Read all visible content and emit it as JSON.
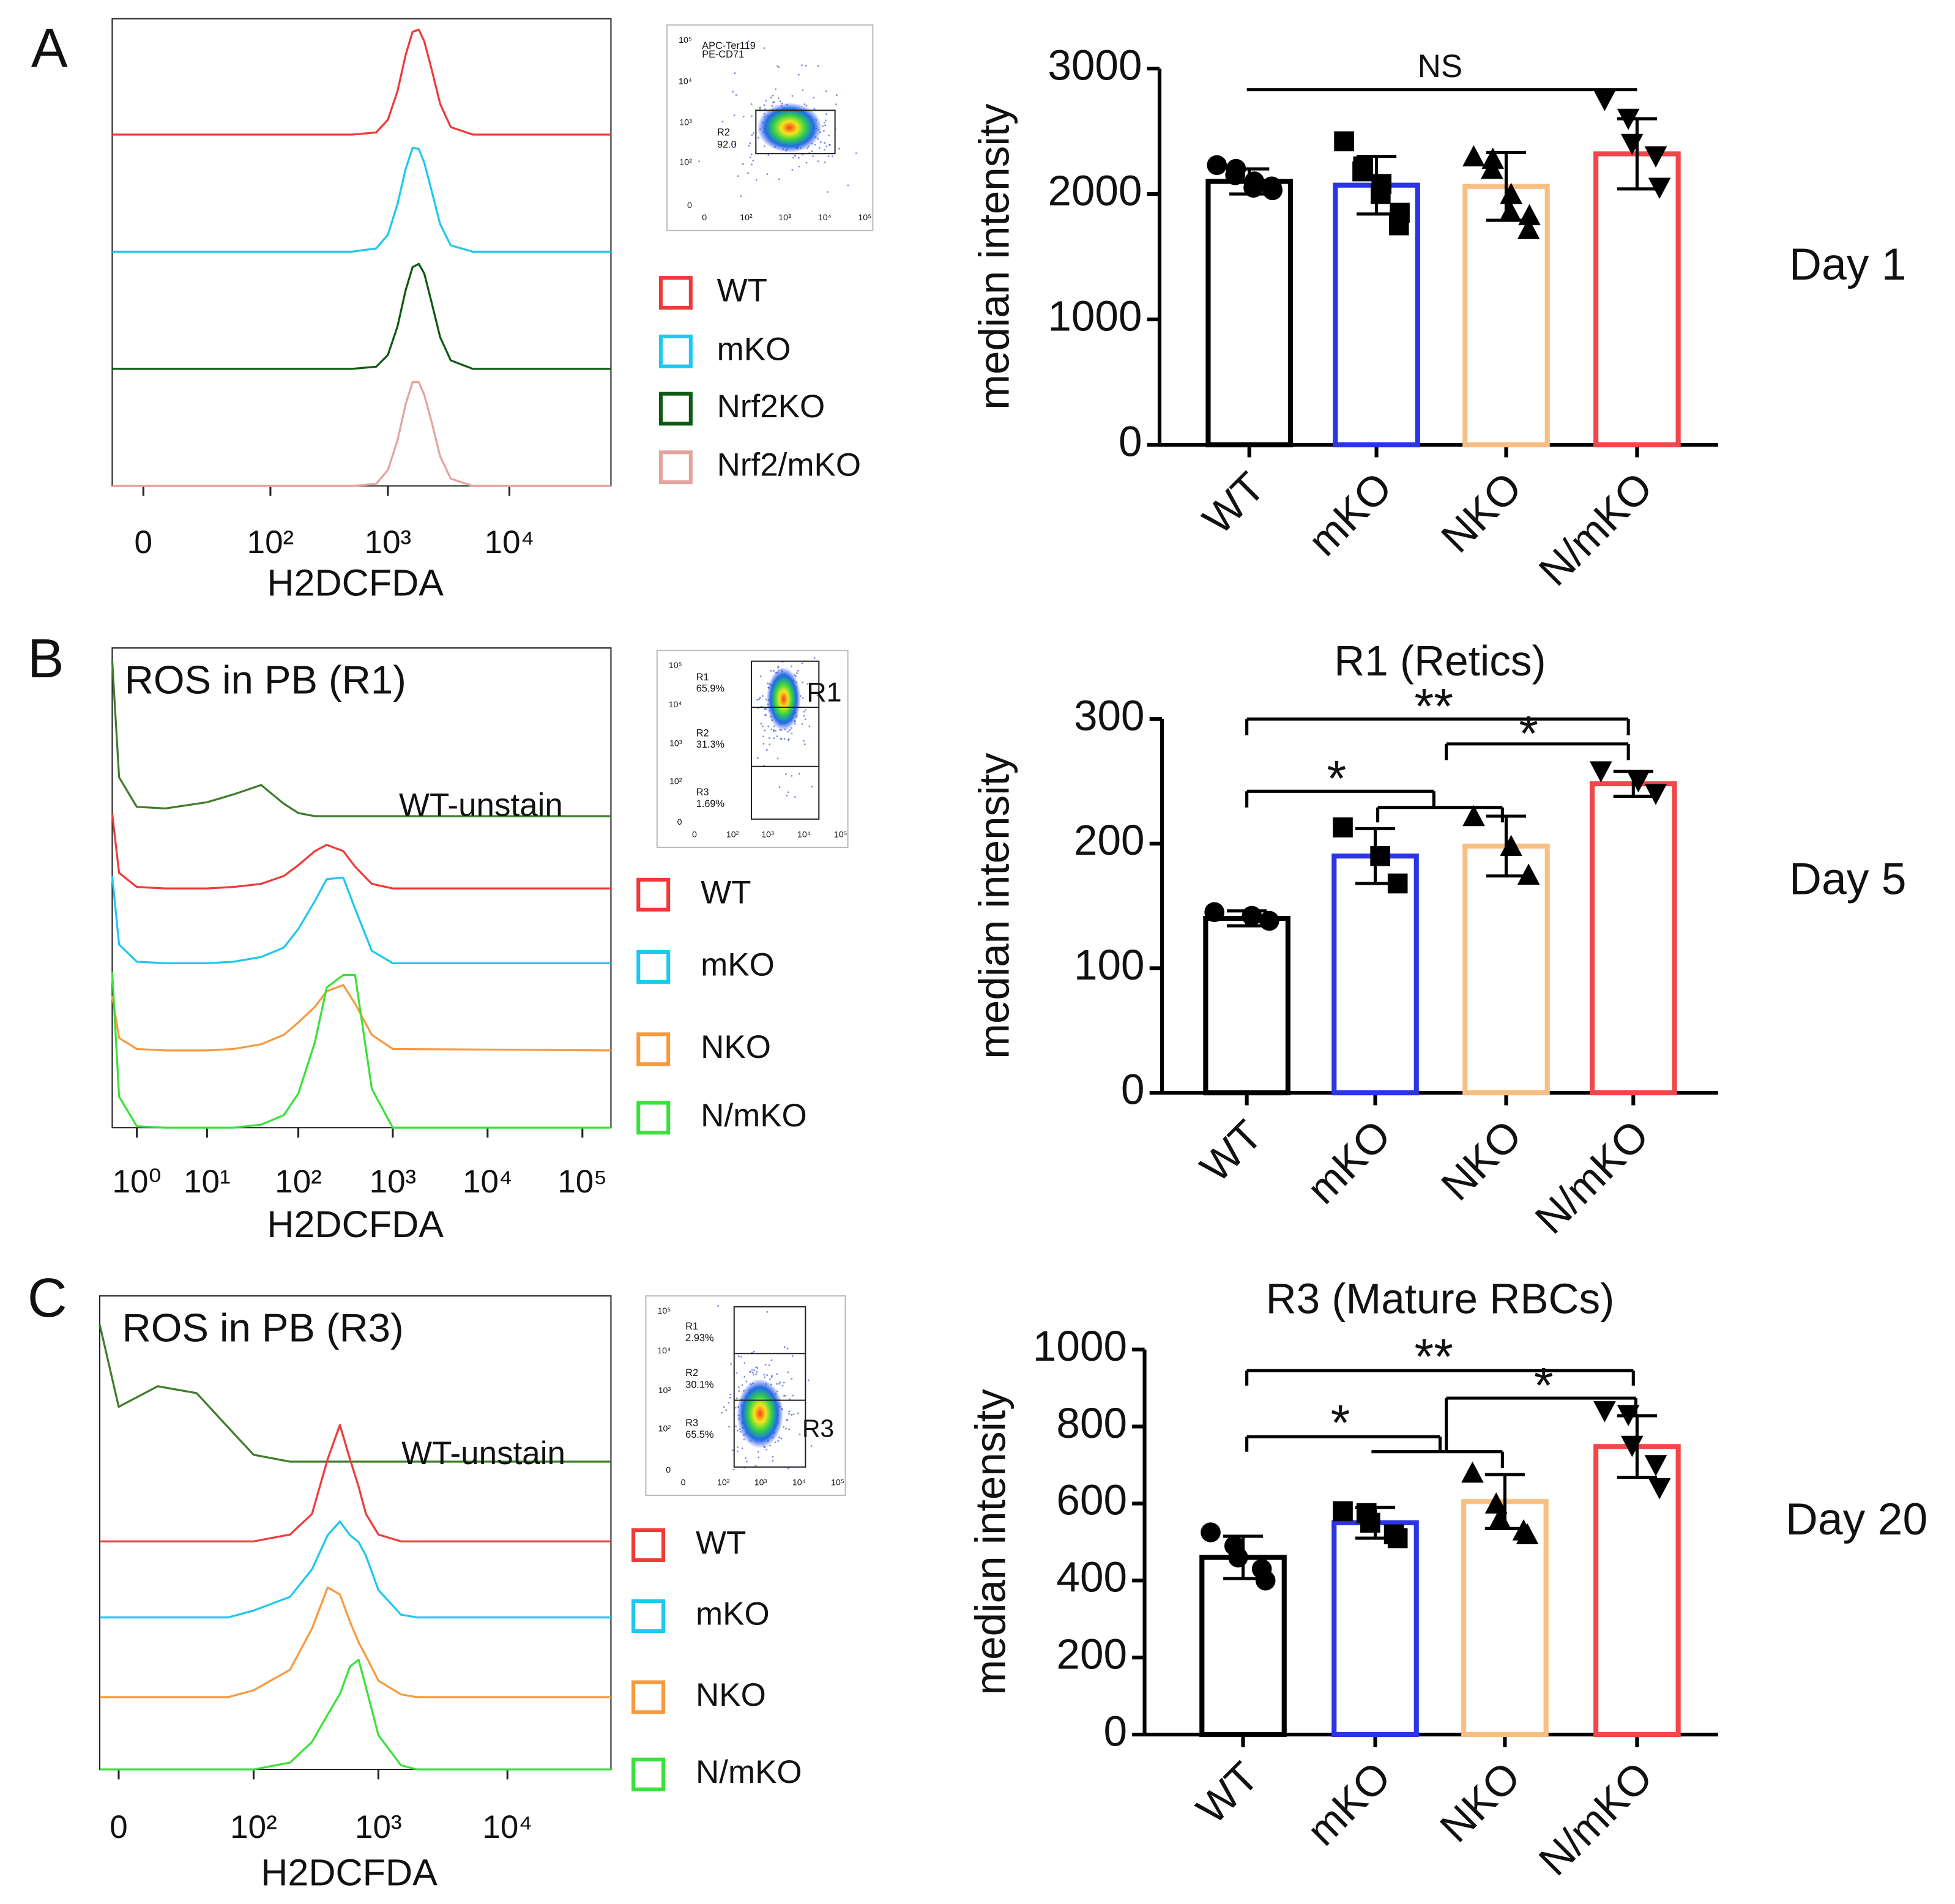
{
  "panel_labels": [
    "A",
    "B",
    "C"
  ],
  "chart_data": [
    {
      "type": "histogram-overlay",
      "xlabel": "H2DCFDA",
      "xscale": "symlog",
      "linthresh": 10,
      "xlim": [
        -8,
        68000
      ],
      "xticks": [
        0,
        {
          "value": 100,
          "label": "10²"
        },
        {
          "value": 1000,
          "label": "10³"
        },
        {
          "value": 10000,
          "label": "10⁴"
        }
      ],
      "x": [
        -8,
        500,
        800,
        1000,
        1200,
        1400,
        1600,
        1800,
        2000,
        2300,
        2700,
        3300,
        5000,
        68000
      ],
      "series": [
        {
          "name": "WT",
          "color": "#f03a3a",
          "values": [
            0,
            0,
            2,
            14,
            41,
            75,
            97,
            99,
            88,
            61,
            29,
            7,
            0,
            0
          ]
        },
        {
          "name": "mKO",
          "color": "#1ec8ef",
          "values": [
            0,
            0,
            3,
            16,
            45,
            78,
            98,
            97,
            84,
            57,
            26,
            6,
            0,
            0
          ]
        },
        {
          "name": "Nrf2KO",
          "color": "#0d5a12",
          "values": [
            0,
            0,
            2,
            13,
            40,
            74,
            96,
            99,
            90,
            62,
            30,
            8,
            0,
            0
          ]
        },
        {
          "name": "Nrf2/mKO",
          "color": "#e5a3a0",
          "values": [
            0,
            0,
            2,
            15,
            43,
            77,
            98,
            98,
            86,
            60,
            28,
            7,
            0,
            0
          ]
        }
      ]
    },
    {
      "type": "bar",
      "ylabel": "median intensity",
      "side_label": "Day 1",
      "categories": [
        "WT",
        "mKO",
        "NKO",
        "N/mKO"
      ],
      "values": [
        2100,
        2070,
        2060,
        2320
      ],
      "errors": [
        100,
        230,
        270,
        280
      ],
      "points": [
        [
          2230,
          2200,
          2150,
          2100,
          2050,
          2030,
          2060
        ],
        [
          2420,
          2220,
          2180,
          2080,
          2000,
          1850,
          1750
        ],
        [
          2300,
          2280,
          2200,
          2000,
          1860,
          1830,
          1720
        ],
        [
          2750,
          2600,
          2400,
          2300,
          2050
        ]
      ],
      "colors": [
        "#000000",
        "#2b35e6",
        "#f8bf82",
        "#f0474a"
      ],
      "markers": [
        "circle",
        "square",
        "triangle",
        "triangle-down"
      ],
      "ylim": [
        0,
        3000
      ],
      "yticks": [
        0,
        1000,
        2000,
        3000
      ],
      "annotations": [
        "NS"
      ]
    },
    {
      "type": "histogram-overlay",
      "title": "ROS in PB (R1)",
      "xlabel": "H2DCFDA",
      "xscale": "symlog",
      "linthresh": 1,
      "xlim": [
        0.1,
        200000
      ],
      "xticks": [
        {
          "value": 1,
          "label": "10⁰"
        },
        {
          "value": 10,
          "label": "10¹"
        },
        {
          "value": 100,
          "label": "10²"
        },
        {
          "value": 1000,
          "label": "10³"
        },
        {
          "value": 10000,
          "label": "10⁴"
        },
        {
          "value": 100000,
          "label": "10⁵"
        }
      ],
      "x": [
        0.1,
        0.3,
        1,
        3,
        10,
        20,
        40,
        70,
        100,
        150,
        200,
        300,
        400,
        600,
        1000,
        200000
      ],
      "series": [
        {
          "name": "WT-unstain",
          "color": "#3f7d2a",
          "legend": false,
          "values": [
            100,
            25,
            6,
            5,
            9,
            14,
            20,
            8,
            2,
            0,
            0,
            0,
            0,
            0,
            0,
            0
          ]
        },
        {
          "name": "WT",
          "color": "#f03a3a",
          "values": [
            48,
            10,
            1,
            0,
            0,
            1,
            3,
            8,
            15,
            24,
            28,
            24,
            14,
            3,
            0,
            0
          ]
        },
        {
          "name": "mKO",
          "color": "#1ec8ef",
          "values": [
            56,
            12,
            1,
            0,
            0,
            1,
            4,
            10,
            22,
            40,
            54,
            55,
            35,
            8,
            0,
            0
          ]
        },
        {
          "name": "NKO",
          "color": "#f79a3e",
          "values": [
            35,
            8,
            1,
            0,
            0,
            1,
            4,
            10,
            18,
            28,
            38,
            42,
            30,
            10,
            1,
            0
          ]
        },
        {
          "name": "N/mKO",
          "color": "#3be13b",
          "values": [
            100,
            20,
            1,
            0,
            0,
            0,
            2,
            8,
            22,
            55,
            90,
            98,
            98,
            25,
            0,
            0
          ]
        }
      ]
    },
    {
      "type": "bar",
      "title": "R1 (Retics)",
      "ylabel": "median intensity",
      "side_label": "Day 5",
      "categories": [
        "WT",
        "mKO",
        "NKO",
        "N/mKO"
      ],
      "values": [
        140,
        190,
        198,
        248
      ],
      "errors": [
        6,
        22,
        24,
        10
      ],
      "points": [
        [
          145,
          142,
          138
        ],
        [
          213,
          190,
          168
        ],
        [
          222,
          198,
          175
        ],
        [
          258,
          250,
          240
        ]
      ],
      "colors": [
        "#000000",
        "#2b35e6",
        "#f8bf82",
        "#f0474a"
      ],
      "markers": [
        "circle",
        "square",
        "triangle",
        "triangle-down"
      ],
      "ylim": [
        0,
        300
      ],
      "yticks": [
        0,
        100,
        200,
        300
      ],
      "annotations": [
        "**",
        "*",
        "*"
      ]
    },
    {
      "type": "histogram-overlay",
      "title": "ROS in PB (R3)",
      "xlabel": "H2DCFDA",
      "xscale": "symlog",
      "linthresh": 10,
      "xlim": [
        -4,
        63000
      ],
      "xticks": [
        0,
        {
          "value": 100,
          "label": "10²"
        },
        {
          "value": 1000,
          "label": "10³"
        },
        {
          "value": 10000,
          "label": "10⁴"
        }
      ],
      "x": [
        -4,
        0,
        10,
        30,
        60,
        100,
        200,
        300,
        400,
        500,
        600,
        700,
        800,
        1000,
        1500,
        2000,
        63000
      ],
      "series": [
        {
          "name": "WT-unstain",
          "color": "#3f7d2a",
          "legend": false,
          "values": [
            100,
            40,
            55,
            50,
            25,
            5,
            0,
            0,
            0,
            0,
            0,
            0,
            0,
            0,
            0,
            0,
            0
          ]
        },
        {
          "name": "WT",
          "color": "#f03a3a",
          "values": [
            0,
            0,
            0,
            0,
            0,
            0,
            5,
            20,
            60,
            85,
            60,
            40,
            20,
            5,
            0,
            0,
            0
          ]
        },
        {
          "name": "mKO",
          "color": "#1ec8ef",
          "values": [
            0,
            0,
            0,
            0,
            0,
            5,
            15,
            35,
            60,
            70,
            60,
            55,
            45,
            20,
            2,
            0,
            0
          ]
        },
        {
          "name": "NKO",
          "color": "#f79a3e",
          "values": [
            0,
            0,
            0,
            0,
            0,
            5,
            20,
            50,
            80,
            75,
            55,
            40,
            30,
            12,
            2,
            0,
            0
          ]
        },
        {
          "name": "N/mKO",
          "color": "#3be13b",
          "values": [
            0,
            0,
            0,
            0,
            0,
            0,
            5,
            20,
            40,
            55,
            75,
            80,
            60,
            25,
            3,
            0,
            0
          ]
        }
      ]
    },
    {
      "type": "bar",
      "title": "R3 (Mature RBCs)",
      "ylabel": "median intensity",
      "side_label": "Day 20",
      "categories": [
        "WT",
        "mKO",
        "NKO",
        "N/mKO"
      ],
      "values": [
        460,
        550,
        605,
        748
      ],
      "errors": [
        55,
        40,
        70,
        80
      ],
      "points": [
        [
          525,
          490,
          460,
          430,
          400
        ],
        [
          580,
          575,
          550,
          520,
          510
        ],
        [
          680,
          600,
          560,
          530,
          520
        ],
        [
          840,
          830,
          750,
          700,
          640
        ]
      ],
      "colors": [
        "#000000",
        "#2b35e6",
        "#f8bf82",
        "#f0474a"
      ],
      "markers": [
        "circle",
        "square",
        "triangle",
        "triangle-down"
      ],
      "ylim": [
        0,
        1000
      ],
      "yticks": [
        0,
        200,
        400,
        600,
        800,
        1000
      ],
      "annotations": [
        "**",
        "*",
        "*"
      ]
    }
  ],
  "insets": [
    {
      "labels": [
        "APC-Ter119",
        "PE-CD71",
        "R2",
        "92.0"
      ],
      "yticks": [
        0,
        {
          "value": 100,
          "label": "10²"
        },
        {
          "value": 1000,
          "label": "10³"
        },
        {
          "value": 10000,
          "label": "10⁴"
        },
        {
          "value": 100000,
          "label": "10⁵"
        }
      ],
      "xticks": [
        0,
        {
          "value": 100,
          "label": "10²"
        },
        {
          "value": 1000,
          "label": "10³"
        },
        {
          "value": 10000,
          "label": "10⁴"
        },
        {
          "value": 100000,
          "label": "10⁵"
        }
      ]
    },
    {
      "labels": [
        "R1",
        "65.9%",
        "R2",
        "31.3%",
        "R3",
        "1.69%",
        "R1"
      ],
      "yticks": [
        0,
        {
          "value": 100,
          "label": "10²"
        },
        {
          "value": 1000,
          "label": "10³"
        },
        {
          "value": 10000,
          "label": "10⁴"
        },
        {
          "value": 100000,
          "label": "10⁵"
        }
      ],
      "xticks": [
        0,
        {
          "value": 100,
          "label": "10²"
        },
        {
          "value": 1000,
          "label": "10³"
        },
        {
          "value": 10000,
          "label": "10⁴"
        },
        {
          "value": 100000,
          "label": "10⁵"
        }
      ]
    },
    {
      "labels": [
        "R1",
        "2.93%",
        "R2",
        "30.1%",
        "R3",
        "65.5%",
        "R3"
      ],
      "yticks": [
        0,
        {
          "value": 100,
          "label": "10²"
        },
        {
          "value": 1000,
          "label": "10³"
        },
        {
          "value": 10000,
          "label": "10⁴"
        },
        {
          "value": 100000,
          "label": "10⁵"
        }
      ],
      "xticks": [
        0,
        {
          "value": 100,
          "label": "10²"
        },
        {
          "value": 1000,
          "label": "10³"
        },
        {
          "value": 10000,
          "label": "10⁴"
        },
        {
          "value": 100000,
          "label": "10⁵"
        }
      ]
    }
  ]
}
